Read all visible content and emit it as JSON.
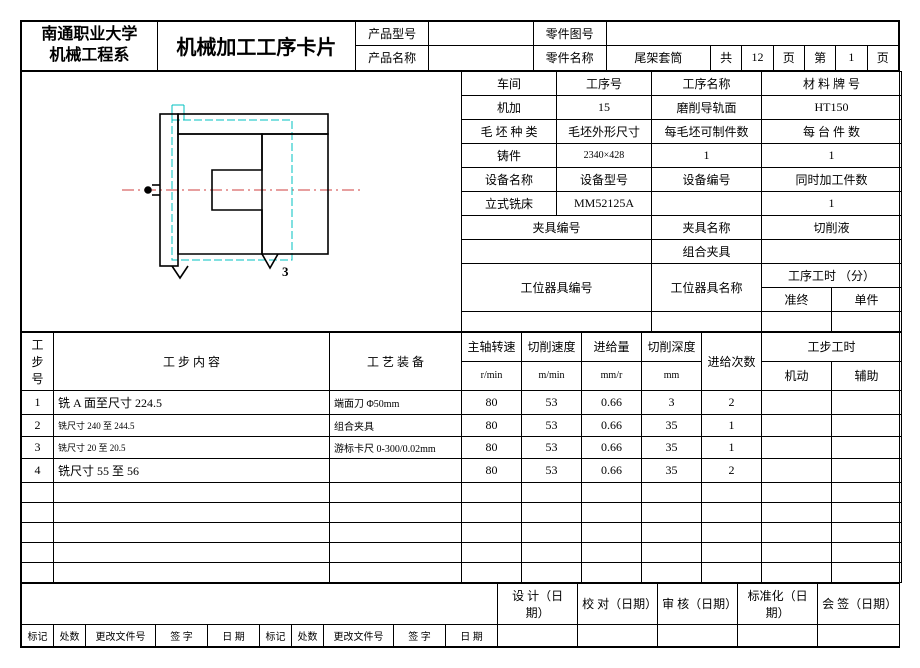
{
  "header": {
    "org_line1": "南通职业大学",
    "org_line2": "机械工程系",
    "title": "机械加工工序卡片",
    "product_model_label": "产品型号",
    "product_model": "",
    "part_drawing_no_label": "零件图号",
    "part_drawing_no": "",
    "product_name_label": "产品名称",
    "product_name": "",
    "part_name_label": "零件名称",
    "part_name": "尾架套筒",
    "page_total_prefix": "共",
    "page_total": "12",
    "page_total_suffix": "页",
    "page_no_prefix": "第",
    "page_no": "1",
    "page_no_suffix": "页"
  },
  "info": {
    "workshop_label": "车间",
    "workshop": "机加",
    "operation_no_label": "工序号",
    "operation_no": "15",
    "operation_name_label": "工序名称",
    "operation_name": "磨削导轨面",
    "material_label": "材 料 牌 号",
    "material": "HT150",
    "blank_type_label": "毛 坯 种 类",
    "blank_type": "铸件",
    "blank_dim_label": "毛坯外形尺寸",
    "blank_dim": "2340×428",
    "blank_count_label": "每毛坯可制件数",
    "blank_count": "1",
    "per_unit_label": "每 台 件 数",
    "per_unit": "1",
    "equip_name_label": "设备名称",
    "equip_name": "立式铣床",
    "equip_model_label": "设备型号",
    "equip_model": "MM52125A",
    "equip_no_label": "设备编号",
    "equip_no": "",
    "simul_label": "同时加工件数",
    "simul": "1",
    "fixture_no_label": "夹具编号",
    "fixture_no": "",
    "fixture_name_label": "夹具名称",
    "fixture_name": "组合夹具",
    "coolant_label": "切削液",
    "coolant": "",
    "station_no_label": "工位器具编号",
    "station_no": "",
    "station_name_label": "工位器具名称",
    "station_name": "",
    "time_label": "工序工时 （分）",
    "time_prep_label": "准终",
    "time_unit_label": "单件"
  },
  "cols": {
    "step_no": "工步号",
    "step_content": "工    步    内    容",
    "equipment": "工 艺 装 备",
    "spindle": "主轴转速",
    "spindle_u": "r/min",
    "cut_speed": "切削速度",
    "cut_speed_u": "m/min",
    "feed": "进给量",
    "feed_u": "mm/r",
    "depth": "切削深度",
    "depth_u": "mm",
    "feed_count": "进给次数",
    "step_time": "工步工时",
    "machine": "机动",
    "aux": "辅助"
  },
  "rows": [
    {
      "no": "1",
      "content": "铣 A 面至尺寸 224.5",
      "equip": "端面刀 Φ50mm",
      "spindle": "80",
      "speed": "53",
      "feed": "0.66",
      "depth": "3",
      "count": "2",
      "m": "",
      "a": ""
    },
    {
      "no": "2",
      "content": "铣尺寸 240 至 244.5",
      "equip": "组合夹具",
      "spindle": "80",
      "speed": "53",
      "feed": "0.66",
      "depth": "35",
      "count": "1",
      "m": "",
      "a": ""
    },
    {
      "no": "3",
      "content": "铣尺寸 20 至 20.5",
      "equip": "游标卡尺 0-300/0.02mm",
      "spindle": "80",
      "speed": "53",
      "feed": "0.66",
      "depth": "35",
      "count": "1",
      "m": "",
      "a": ""
    },
    {
      "no": "4",
      "content": "铣尺寸 55 至 56",
      "equip": "",
      "spindle": "80",
      "speed": "53",
      "feed": "0.66",
      "depth": "35",
      "count": "2",
      "m": "",
      "a": ""
    }
  ],
  "footer": {
    "design": "设 计（日 期）",
    "check": "校 对（日期）",
    "review": "审 核（日期）",
    "standard": "标准化（日期）",
    "sign": "会 签（日期）",
    "mark": "标记",
    "qty": "处数",
    "change_doc": "更改文件号",
    "sig": "签   字",
    "date": "日  期"
  },
  "drawing": {
    "colors": {
      "outline": "#000000",
      "phantom": "#00c0c0",
      "center": "#c00000"
    },
    "stroke_main": 1.6,
    "stroke_thin": 0.8,
    "label": "3"
  }
}
